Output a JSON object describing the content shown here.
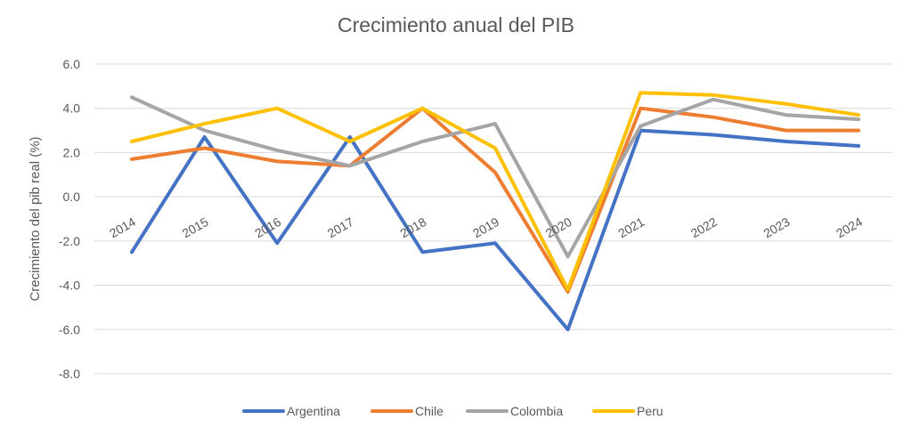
{
  "chart_data": {
    "type": "line",
    "title": "Crecimiento anual del PIB",
    "xlabel": "",
    "ylabel": "Crecimiento del pib real (%)",
    "categories": [
      "2014",
      "2015",
      "2016",
      "2017",
      "2018",
      "2019",
      "2020",
      "2021",
      "2022",
      "2023",
      "2024"
    ],
    "ylim": [
      -8,
      6
    ],
    "yticks": [
      -8,
      -6,
      -4,
      -2,
      0,
      2,
      4,
      6
    ],
    "ytick_labels": [
      "-8.0",
      "-6.0",
      "-4.0",
      "-2.0",
      "0.0",
      "2.0",
      "4.0",
      "6.0"
    ],
    "grid": true,
    "legend_position": "bottom",
    "series": [
      {
        "name": "Argentina",
        "color": "#4472C4",
        "values": [
          -2.5,
          2.7,
          -2.1,
          2.7,
          -2.5,
          -2.1,
          -6.0,
          3.0,
          2.8,
          2.5,
          2.3
        ]
      },
      {
        "name": "Chile",
        "color": "#ED7D31",
        "values": [
          1.7,
          2.2,
          1.6,
          1.4,
          4.0,
          1.1,
          -4.3,
          4.0,
          3.6,
          3.0,
          3.0
        ]
      },
      {
        "name": "Colombia",
        "color": "#A5A5A5",
        "values": [
          4.5,
          3.0,
          2.1,
          1.4,
          2.5,
          3.3,
          -2.7,
          3.2,
          4.4,
          3.7,
          3.5
        ]
      },
      {
        "name": "Peru",
        "color": "#FFC000",
        "values": [
          2.5,
          3.3,
          4.0,
          2.5,
          4.0,
          2.2,
          -4.2,
          4.7,
          4.6,
          4.2,
          3.7
        ]
      }
    ]
  }
}
